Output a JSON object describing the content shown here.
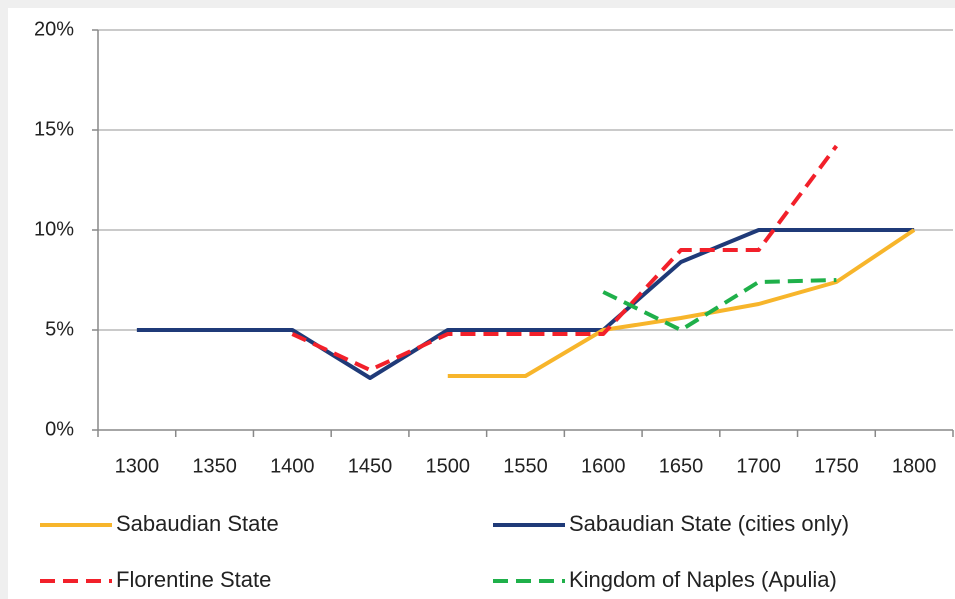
{
  "chart_data": {
    "type": "line",
    "categories": [
      "1300",
      "1350",
      "1400",
      "1450",
      "1500",
      "1550",
      "1600",
      "1650",
      "1700",
      "1750",
      "1800"
    ],
    "series": [
      {
        "name": "Sabaudian State",
        "color": "#f7b52b",
        "dash": false,
        "values": [
          null,
          null,
          null,
          null,
          2.7,
          2.7,
          5.0,
          5.6,
          6.3,
          7.4,
          10.0
        ]
      },
      {
        "name": "Sabaudian State (cities only)",
        "color": "#1f3a78",
        "dash": false,
        "values": [
          5.0,
          5.0,
          5.0,
          2.6,
          5.0,
          5.0,
          5.0,
          8.4,
          10.0,
          10.0,
          10.0
        ]
      },
      {
        "name": "Florentine State",
        "color": "#f2202a",
        "dash": true,
        "values": [
          null,
          null,
          4.8,
          3.0,
          4.8,
          4.8,
          4.8,
          9.0,
          9.0,
          14.2,
          null
        ]
      },
      {
        "name": "Kingdom of Naples (Apulia)",
        "color": "#1fb04a",
        "dash": true,
        "values": [
          null,
          null,
          null,
          null,
          null,
          null,
          6.9,
          5.0,
          7.4,
          7.5,
          null
        ]
      }
    ],
    "ylim": [
      0,
      20
    ],
    "yticks": [
      {
        "value": 0,
        "label": "0%"
      },
      {
        "value": 5,
        "label": "5%"
      },
      {
        "value": 10,
        "label": "10%"
      },
      {
        "value": 15,
        "label": "15%"
      },
      {
        "value": 20,
        "label": "20%"
      }
    ],
    "grid": true,
    "legend": "bottom"
  }
}
